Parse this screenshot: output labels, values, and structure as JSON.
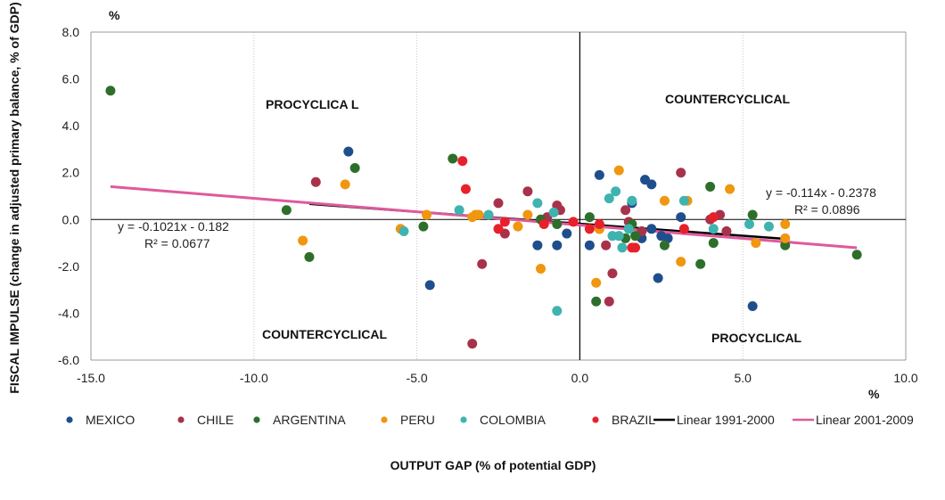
{
  "chart_data": {
    "type": "scatter",
    "xlabel": "OUTPUT GAP (% of potential GDP)",
    "ylabel": "FISCAL IMPULSE (change in adjusted primary balance, % of GDP)",
    "x_unit": "%",
    "y_unit": "%",
    "xlim": [
      -15,
      10
    ],
    "ylim": [
      -6,
      8
    ],
    "x_ticks": [
      "-15.0",
      "-10.0",
      "-5.0",
      "0.0",
      "5.0",
      "10.0"
    ],
    "y_ticks": [
      "-6.0",
      "-4.0",
      "-2.0",
      "0.0",
      "2.0",
      "4.0",
      "6.0",
      "8.0"
    ],
    "grid": "vertical dotted",
    "legend_position": "bottom",
    "quadrant_labels": {
      "top_left": "PROCYCLICA L",
      "top_right": "COUNTERCYCLICAL",
      "bottom_left": "COUNTERCYCLICAL",
      "bottom_right": "PROCYCLICAL"
    },
    "equations": {
      "left_eq": "y = -0.1021x - 0.182",
      "left_r2": "R² = 0.0677",
      "right_eq": "y = -0.114x - 0.2378",
      "right_r2": "R² = 0.0896"
    },
    "series": [
      {
        "name": "MEXICO",
        "color": "#1f4e8c",
        "points": [
          [
            -7.1,
            2.9
          ],
          [
            -4.6,
            -2.8
          ],
          [
            -1.3,
            -1.1
          ],
          [
            -0.7,
            -1.1
          ],
          [
            -0.4,
            -0.6
          ],
          [
            0.6,
            1.9
          ],
          [
            0.3,
            -1.1
          ],
          [
            1.6,
            0.7
          ],
          [
            1.9,
            -0.8
          ],
          [
            2.0,
            1.7
          ],
          [
            2.2,
            -0.4
          ],
          [
            2.2,
            1.5
          ],
          [
            2.5,
            -0.7
          ],
          [
            2.4,
            -2.5
          ],
          [
            2.7,
            -0.8
          ],
          [
            3.1,
            0.1
          ],
          [
            5.3,
            -3.7
          ]
        ]
      },
      {
        "name": "CHILE",
        "color": "#a8324a",
        "points": [
          [
            -8.1,
            1.6
          ],
          [
            -3.3,
            -5.3
          ],
          [
            -3.0,
            -1.9
          ],
          [
            -2.5,
            0.7
          ],
          [
            -2.3,
            -0.6
          ],
          [
            -1.6,
            1.2
          ],
          [
            -1.0,
            0.1
          ],
          [
            -0.7,
            0.6
          ],
          [
            -0.6,
            0.4
          ],
          [
            0.6,
            -0.4
          ],
          [
            0.9,
            -3.5
          ],
          [
            0.8,
            -1.1
          ],
          [
            1.0,
            -2.3
          ],
          [
            1.4,
            0.4
          ],
          [
            1.5,
            -0.1
          ],
          [
            3.1,
            2.0
          ],
          [
            4.0,
            0.0
          ],
          [
            4.3,
            0.2
          ],
          [
            4.5,
            -0.5
          ],
          [
            1.9,
            -0.5
          ]
        ]
      },
      {
        "name": "ARGENTINA",
        "color": "#2d6f2a",
        "points": [
          [
            -14.4,
            5.5
          ],
          [
            -9.0,
            0.4
          ],
          [
            -8.3,
            -1.6
          ],
          [
            -6.9,
            2.2
          ],
          [
            -4.8,
            -0.3
          ],
          [
            -3.9,
            2.6
          ],
          [
            -1.2,
            0.0
          ],
          [
            -0.7,
            -0.2
          ],
          [
            0.3,
            0.1
          ],
          [
            0.5,
            -3.5
          ],
          [
            1.4,
            -0.8
          ],
          [
            1.6,
            -0.2
          ],
          [
            1.7,
            -0.7
          ],
          [
            2.6,
            -1.1
          ],
          [
            3.7,
            -1.9
          ],
          [
            4.0,
            1.4
          ],
          [
            4.1,
            -1.0
          ],
          [
            5.3,
            0.2
          ],
          [
            6.3,
            -1.1
          ],
          [
            8.5,
            -1.5
          ]
        ]
      },
      {
        "name": "PERU",
        "color": "#f0960f",
        "points": [
          [
            -8.5,
            -0.9
          ],
          [
            -7.2,
            1.5
          ],
          [
            -5.5,
            -0.4
          ],
          [
            -4.7,
            0.2
          ],
          [
            -3.3,
            0.1
          ],
          [
            -3.2,
            0.2
          ],
          [
            -3.1,
            0.2
          ],
          [
            -1.9,
            -0.3
          ],
          [
            -1.6,
            0.2
          ],
          [
            -1.2,
            -2.1
          ],
          [
            0.5,
            -2.7
          ],
          [
            0.6,
            -0.4
          ],
          [
            1.2,
            2.1
          ],
          [
            2.6,
            0.8
          ],
          [
            3.1,
            -1.8
          ],
          [
            3.3,
            0.8
          ],
          [
            4.6,
            1.3
          ],
          [
            5.4,
            -1.0
          ],
          [
            6.3,
            -0.8
          ],
          [
            6.3,
            -0.2
          ]
        ]
      },
      {
        "name": "COLOMBIA",
        "color": "#3fb3b0",
        "points": [
          [
            -5.4,
            -0.5
          ],
          [
            -3.7,
            0.4
          ],
          [
            -2.8,
            0.2
          ],
          [
            -1.3,
            0.7
          ],
          [
            -0.8,
            0.3
          ],
          [
            -0.7,
            -3.9
          ],
          [
            0.9,
            0.9
          ],
          [
            1.0,
            -0.7
          ],
          [
            1.1,
            1.2
          ],
          [
            1.2,
            -0.7
          ],
          [
            1.3,
            -1.2
          ],
          [
            1.5,
            -0.4
          ],
          [
            1.6,
            0.8
          ],
          [
            3.2,
            0.8
          ],
          [
            4.1,
            -0.4
          ],
          [
            5.2,
            -0.2
          ],
          [
            5.8,
            -0.3
          ]
        ]
      },
      {
        "name": "BRAZIL",
        "color": "#e8202b",
        "points": [
          [
            -3.6,
            2.5
          ],
          [
            -3.5,
            1.3
          ],
          [
            -2.5,
            -0.4
          ],
          [
            -2.3,
            -0.1
          ],
          [
            -1.1,
            -0.2
          ],
          [
            -0.2,
            -0.1
          ],
          [
            0.3,
            -0.4
          ],
          [
            0.6,
            -0.2
          ],
          [
            1.6,
            -1.2
          ],
          [
            1.7,
            -1.2
          ],
          [
            3.2,
            -0.4
          ],
          [
            4.1,
            0.1
          ]
        ]
      }
    ],
    "trendlines": [
      {
        "name": "Linear 1991-2000",
        "color": "#000000",
        "x": [
          -8.3,
          6.3
        ],
        "slope": -0.1021,
        "intercept": -0.182
      },
      {
        "name": "Linear 2001-2009",
        "color": "#de5a9c",
        "x": [
          -14.4,
          8.5
        ],
        "slope": -0.114,
        "intercept": -0.2378
      }
    ]
  }
}
